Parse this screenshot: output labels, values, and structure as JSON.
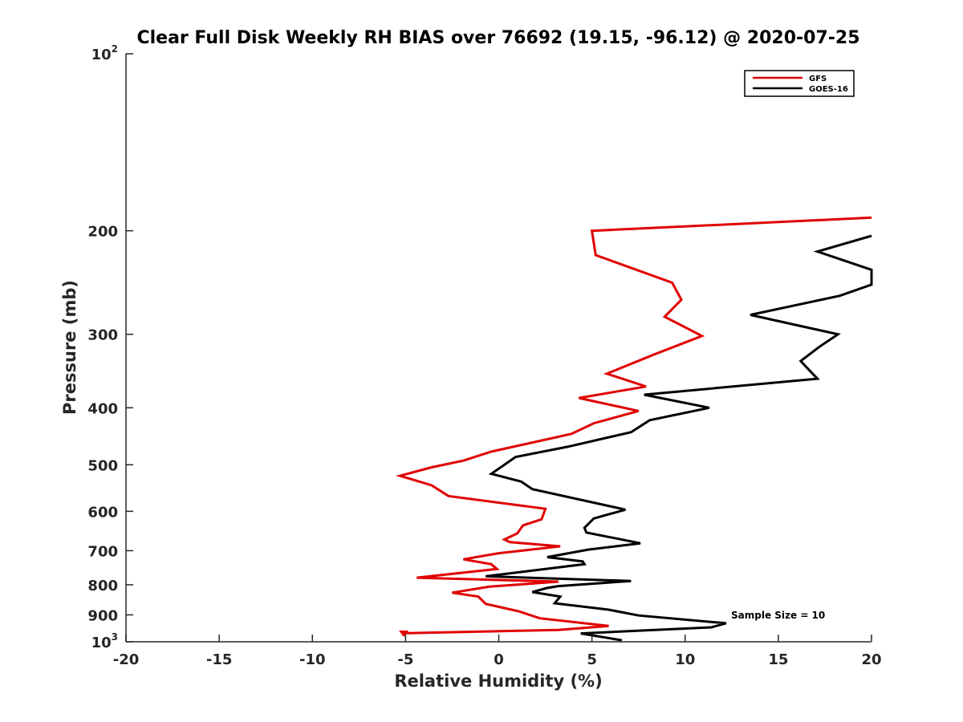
{
  "chart_data": {
    "type": "line",
    "title": "Clear Full Disk Weekly RH BIAS over 76692 (19.15, -96.12) @ 2020-07-25",
    "xlabel": "Relative Humidity (%)",
    "ylabel": "Pressure (mb)",
    "xlim": [
      -20,
      20
    ],
    "ylim": [
      100,
      1000
    ],
    "yscale": "log",
    "yreversed": true,
    "xticks": [
      -20,
      -15,
      -10,
      -5,
      0,
      5,
      10,
      15,
      20
    ],
    "xtick_labels": [
      "-20",
      "-15",
      "-10",
      "-5",
      "0",
      "5",
      "10",
      "15",
      "20"
    ],
    "yticks": [
      100,
      200,
      300,
      400,
      500,
      600,
      700,
      800,
      900,
      1000
    ],
    "ytick_labels": [
      {
        "base": "10",
        "exp": "2"
      },
      {
        "base": "200",
        "exp": ""
      },
      {
        "base": "300",
        "exp": ""
      },
      {
        "base": "400",
        "exp": ""
      },
      {
        "base": "500",
        "exp": ""
      },
      {
        "base": "600",
        "exp": ""
      },
      {
        "base": "700",
        "exp": ""
      },
      {
        "base": "800",
        "exp": ""
      },
      {
        "base": "900",
        "exp": ""
      },
      {
        "base": "10",
        "exp": "3"
      }
    ],
    "legend_position": "top-right",
    "annotation": "Sample Size = 10",
    "series": [
      {
        "name": "GFS",
        "color": "#e00000",
        "points": [
          [
            20,
            190
          ],
          [
            5,
            200
          ],
          [
            5.2,
            220
          ],
          [
            9.3,
            245
          ],
          [
            9.8,
            262
          ],
          [
            8.9,
            280
          ],
          [
            10.9,
            302
          ],
          [
            8.3,
            325
          ],
          [
            5.8,
            350
          ],
          [
            7.9,
            368
          ],
          [
            4.3,
            385
          ],
          [
            7.5,
            405
          ],
          [
            5.1,
            425
          ],
          [
            3.9,
            443
          ],
          [
            -0.4,
            475
          ],
          [
            -1.9,
            492
          ],
          [
            -3.6,
            505
          ],
          [
            -5.3,
            522
          ],
          [
            -3.6,
            542
          ],
          [
            -2.7,
            565
          ],
          [
            2.5,
            594
          ],
          [
            2.3,
            619
          ],
          [
            1.3,
            634
          ],
          [
            1.0,
            654
          ],
          [
            0.3,
            670
          ],
          [
            0.6,
            677
          ],
          [
            3.3,
            688
          ],
          [
            0,
            707
          ],
          [
            -1.9,
            724
          ],
          [
            -0.4,
            738
          ],
          [
            -0.1,
            752
          ],
          [
            -4.4,
            778
          ],
          [
            3.2,
            790
          ],
          [
            -0.5,
            806
          ],
          [
            -2.5,
            825
          ],
          [
            -1.1,
            838
          ],
          [
            -0.7,
            862
          ],
          [
            1.1,
            888
          ],
          [
            2.2,
            912
          ],
          [
            5.9,
            940
          ],
          [
            3.2,
            955
          ],
          [
            -5.1,
            967
          ],
          [
            -5.1,
            975
          ]
        ]
      },
      {
        "name": "GOES-16",
        "color": "#000000",
        "points": [
          [
            20,
            204
          ],
          [
            17.1,
            217
          ],
          [
            20,
            233
          ],
          [
            20,
            247
          ],
          [
            18.3,
            258
          ],
          [
            13.5,
            278
          ],
          [
            18.2,
            300
          ],
          [
            17.2,
            315
          ],
          [
            16.2,
            333
          ],
          [
            17.1,
            357
          ],
          [
            7.8,
            380
          ],
          [
            11.3,
            400
          ],
          [
            8.1,
            420
          ],
          [
            7.1,
            440
          ],
          [
            3.7,
            466
          ],
          [
            0.9,
            485
          ],
          [
            0.7,
            490
          ],
          [
            -0.4,
            518
          ],
          [
            1.2,
            534
          ],
          [
            1.8,
            550
          ],
          [
            6.8,
            596
          ],
          [
            5.1,
            617
          ],
          [
            4.6,
            640
          ],
          [
            4.7,
            652
          ],
          [
            7.6,
            680
          ],
          [
            4.8,
            697
          ],
          [
            2.6,
            718
          ],
          [
            4.5,
            730
          ],
          [
            4.6,
            738
          ],
          [
            -0.7,
            774
          ],
          [
            7.1,
            788
          ],
          [
            3.2,
            804
          ],
          [
            2.6,
            810
          ],
          [
            1.8,
            823
          ],
          [
            3.3,
            838
          ],
          [
            3.0,
            860
          ],
          [
            5.9,
            882
          ],
          [
            7.5,
            902
          ],
          [
            12.2,
            930
          ],
          [
            11.4,
            945
          ],
          [
            4.4,
            968
          ],
          [
            6.6,
            994
          ]
        ]
      }
    ]
  }
}
